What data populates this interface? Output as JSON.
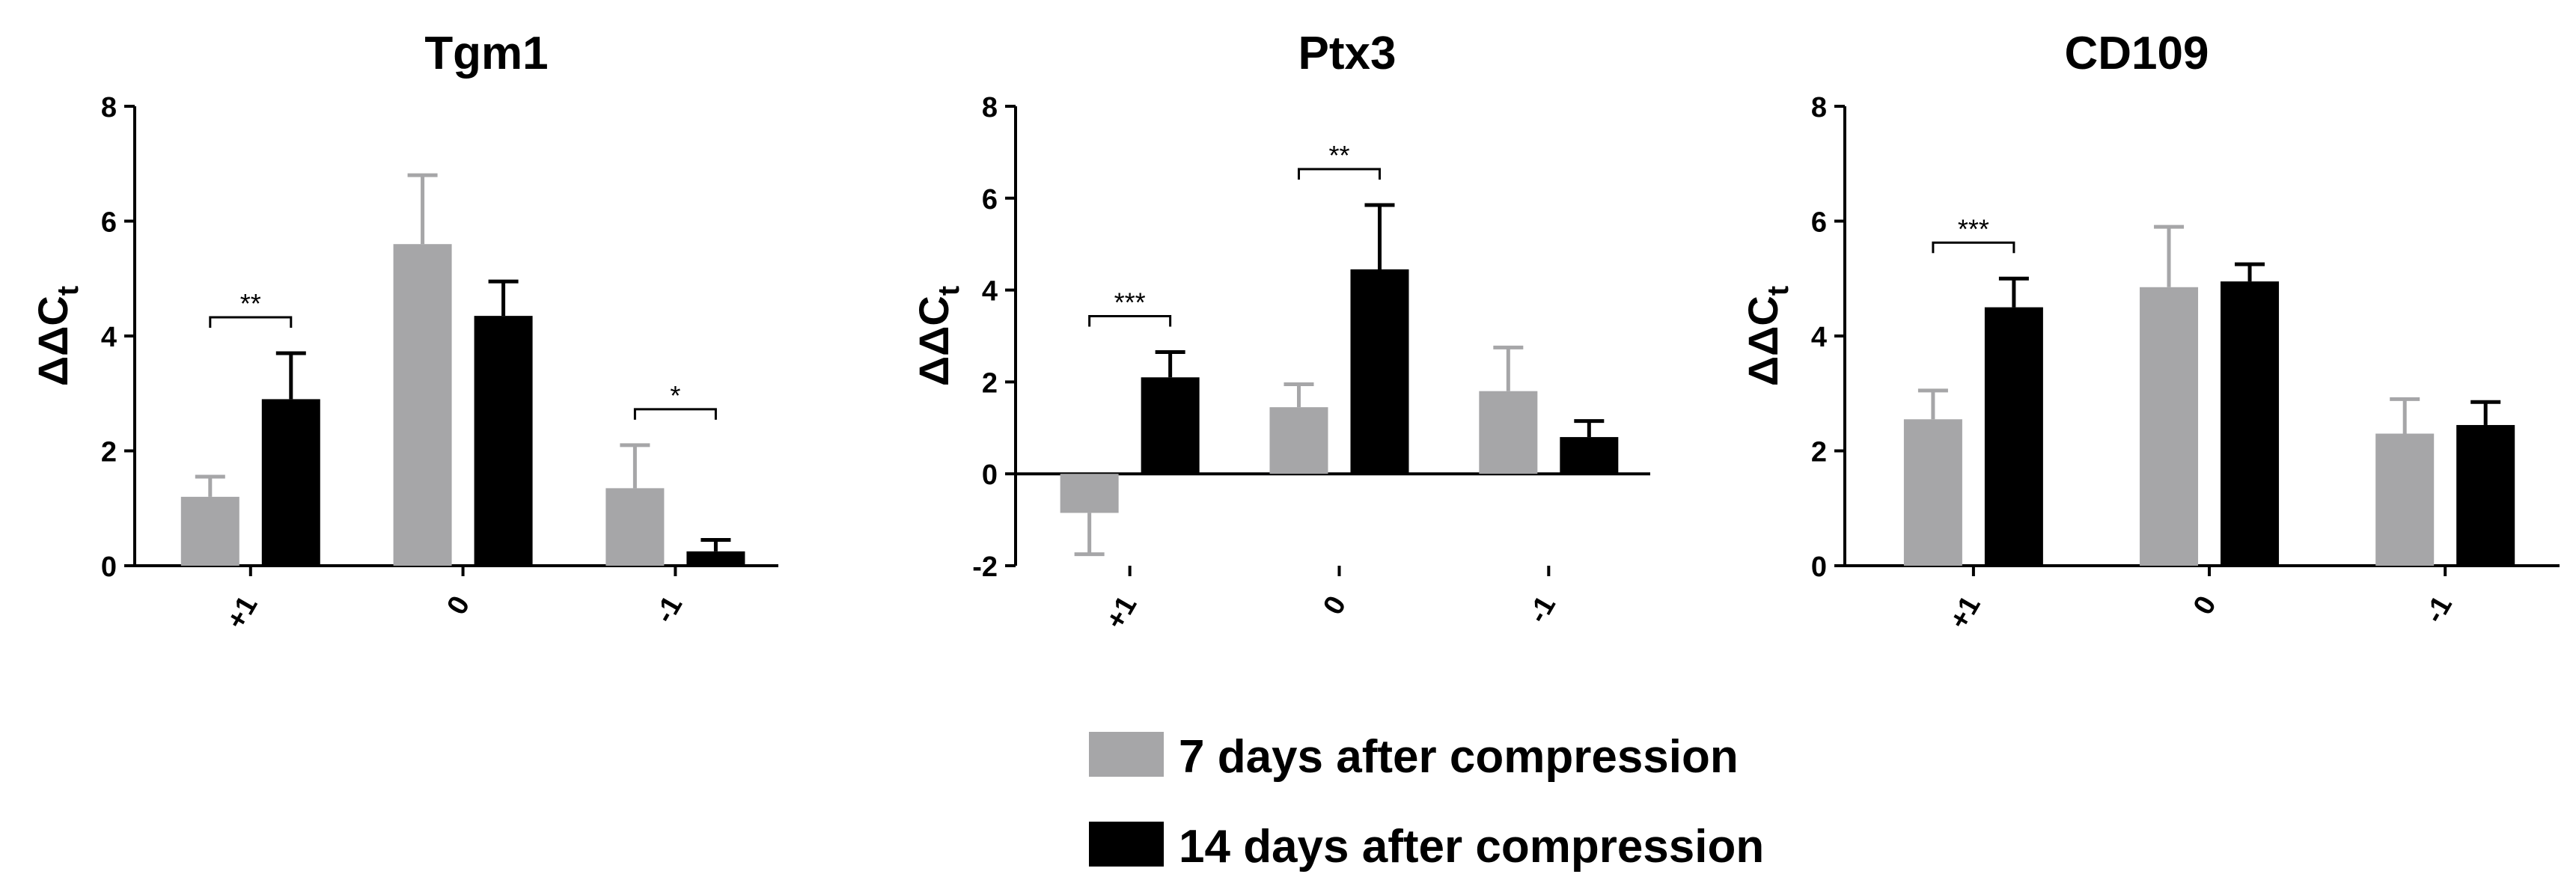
{
  "colors": {
    "seven_days": "#a6a6a8",
    "fourteen_days": "#000000",
    "axis": "#000000"
  },
  "legend": {
    "placement": "bottom-center",
    "items": [
      {
        "label": "7 days after compression",
        "color": "#a6a6a8"
      },
      {
        "label": "14 days after compression",
        "color": "#000000"
      }
    ]
  },
  "chart_data": [
    {
      "type": "bar",
      "title": "Tgm1",
      "ylabel_main": "ΔΔC",
      "ylabel_sub": "t",
      "ylim": [
        0,
        8
      ],
      "yticks": [
        0,
        2,
        4,
        6,
        8
      ],
      "categories": [
        "+1",
        "0",
        "-1"
      ],
      "series": [
        {
          "name": "7 days after compression",
          "values": [
            1.2,
            5.6,
            1.35
          ],
          "errors": [
            0.35,
            1.2,
            0.75
          ]
        },
        {
          "name": "14 days after compression",
          "values": [
            2.9,
            4.35,
            0.25
          ],
          "errors": [
            0.8,
            0.6,
            0.2
          ]
        }
      ],
      "significance": [
        {
          "category_index": 0,
          "label": "**"
        },
        {
          "category_index": 2,
          "label": "*"
        }
      ]
    },
    {
      "type": "bar",
      "title": "Ptx3",
      "ylabel_main": "ΔΔC",
      "ylabel_sub": "t",
      "ylim": [
        -2,
        8
      ],
      "yticks": [
        -2,
        0,
        2,
        4,
        6,
        8
      ],
      "categories": [
        "+1",
        "0",
        "-1"
      ],
      "series": [
        {
          "name": "7 days after compression",
          "values": [
            -0.85,
            1.45,
            1.8
          ],
          "errors": [
            0.9,
            0.5,
            0.95
          ]
        },
        {
          "name": "14 days after compression",
          "values": [
            2.1,
            4.45,
            0.8
          ],
          "errors": [
            0.55,
            1.4,
            0.35
          ]
        }
      ],
      "significance": [
        {
          "category_index": 0,
          "label": "***"
        },
        {
          "category_index": 1,
          "label": "**"
        }
      ]
    },
    {
      "type": "bar",
      "title": "CD109",
      "ylabel_main": "ΔΔC",
      "ylabel_sub": "t",
      "ylim": [
        0,
        8
      ],
      "yticks": [
        0,
        2,
        4,
        6,
        8
      ],
      "categories": [
        "+1",
        "0",
        "-1"
      ],
      "series": [
        {
          "name": "7 days after compression",
          "values": [
            2.55,
            4.85,
            2.3
          ],
          "errors": [
            0.5,
            1.05,
            0.6
          ]
        },
        {
          "name": "14 days after compression",
          "values": [
            4.5,
            4.95,
            2.45
          ],
          "errors": [
            0.5,
            0.3,
            0.4
          ]
        }
      ],
      "significance": [
        {
          "category_index": 0,
          "label": "***"
        }
      ]
    }
  ]
}
